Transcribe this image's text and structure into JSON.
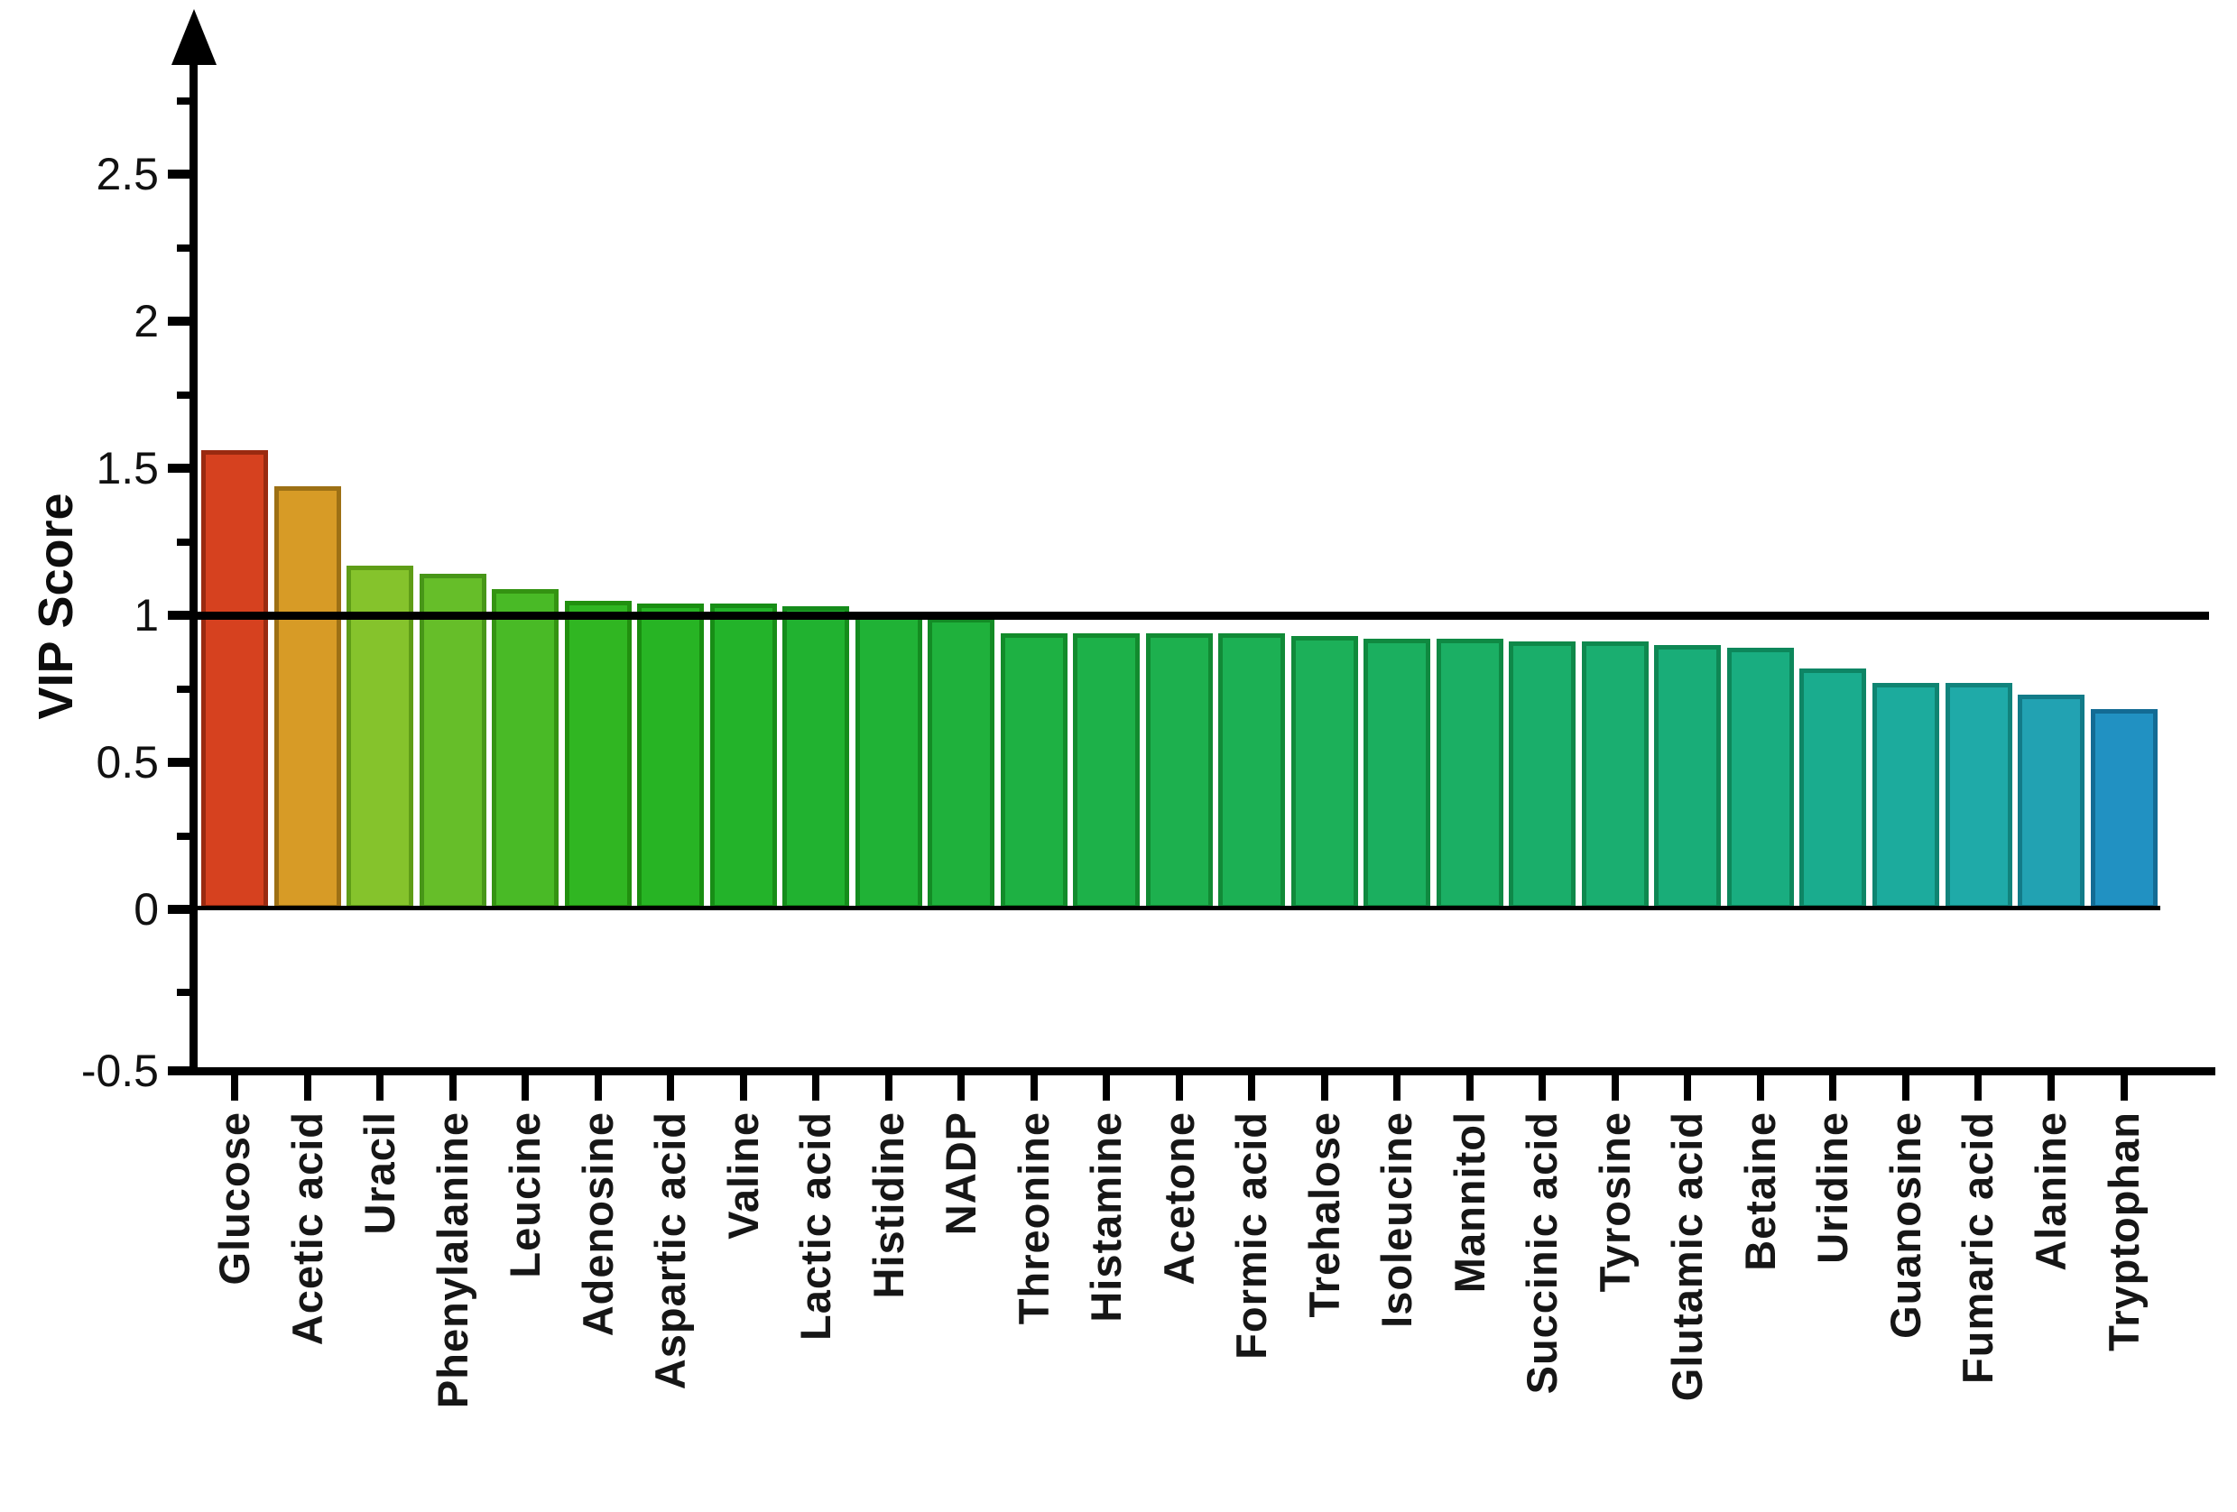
{
  "chart_data": {
    "type": "bar",
    "title": "",
    "xlabel": "",
    "ylabel": "VIP Score",
    "ylim": [
      -0.5,
      2.9
    ],
    "grid": "off",
    "legend": "none",
    "x_tick_label_rotation_degrees": 90,
    "reference_line_y": 1,
    "baseline_y": 0,
    "y_axis_arrow": "up-arrow-icon",
    "y_ticks": {
      "major_values": [
        2.5,
        2,
        1.5,
        1,
        0.5,
        0,
        -0.5
      ],
      "major_labels": [
        "2.5",
        "2",
        "1.5",
        "1",
        "0.5",
        "0",
        "-0.5"
      ],
      "minor_values": [
        2.75,
        2.25,
        1.75,
        1.25,
        0.75,
        0.25,
        -0.25
      ]
    },
    "categories": [
      "Glucose",
      "Acetic acid",
      "Uracil",
      "Phenylalanine",
      "Leucine",
      "Adenosine",
      "Aspartic acid",
      "Valine",
      "Lactic acid",
      "Histidine",
      "NADP",
      "Threonine",
      "Histamine",
      "Acetone",
      "Formic acid",
      "Trehalose",
      "Isoleucine",
      "Mannitol",
      "Succinic acid",
      "Tyrosine",
      "Glutamic acid",
      "Betaine",
      "Uridine",
      "Guanosine",
      "Fumaric acid",
      "Alanine",
      "Tryptophan"
    ],
    "values": [
      1.56,
      1.44,
      1.17,
      1.14,
      1.09,
      1.05,
      1.04,
      1.04,
      1.03,
      1.0,
      0.99,
      0.94,
      0.94,
      0.94,
      0.94,
      0.93,
      0.92,
      0.92,
      0.91,
      0.91,
      0.9,
      0.89,
      0.82,
      0.77,
      0.77,
      0.73,
      0.68
    ],
    "bar_fill_colors": [
      "#d6411f",
      "#d79b26",
      "#85c32c",
      "#66be29",
      "#49ba26",
      "#30b622",
      "#27b424",
      "#23b32a",
      "#21b230",
      "#20b236",
      "#1fb13c",
      "#1eb143",
      "#1db149",
      "#1db04e",
      "#1cb054",
      "#1cb059",
      "#1baf5f",
      "#1baf64",
      "#1aae6a",
      "#1aae70",
      "#19ad78",
      "#19ad80",
      "#1aac8e",
      "#1cab9d",
      "#1faaa8",
      "#22a2b2",
      "#2191c2"
    ],
    "bar_border_colors": [
      "#9a2a10",
      "#9d7014",
      "#5f9d17",
      "#479618",
      "#349312",
      "#21900f",
      "#1a8e11",
      "#178d16",
      "#158c1b",
      "#148c20",
      "#138b25",
      "#128b2a",
      "#128b2e",
      "#118a33",
      "#118a37",
      "#108a3b",
      "#108940",
      "#0f8944",
      "#0f8849",
      "#0e884e",
      "#0e8754",
      "#0d875b",
      "#0e8565",
      "#0f8471",
      "#11837c",
      "#127b88",
      "#136b94"
    ],
    "axis_color": "#000000",
    "background_color": "#ffffff"
  }
}
